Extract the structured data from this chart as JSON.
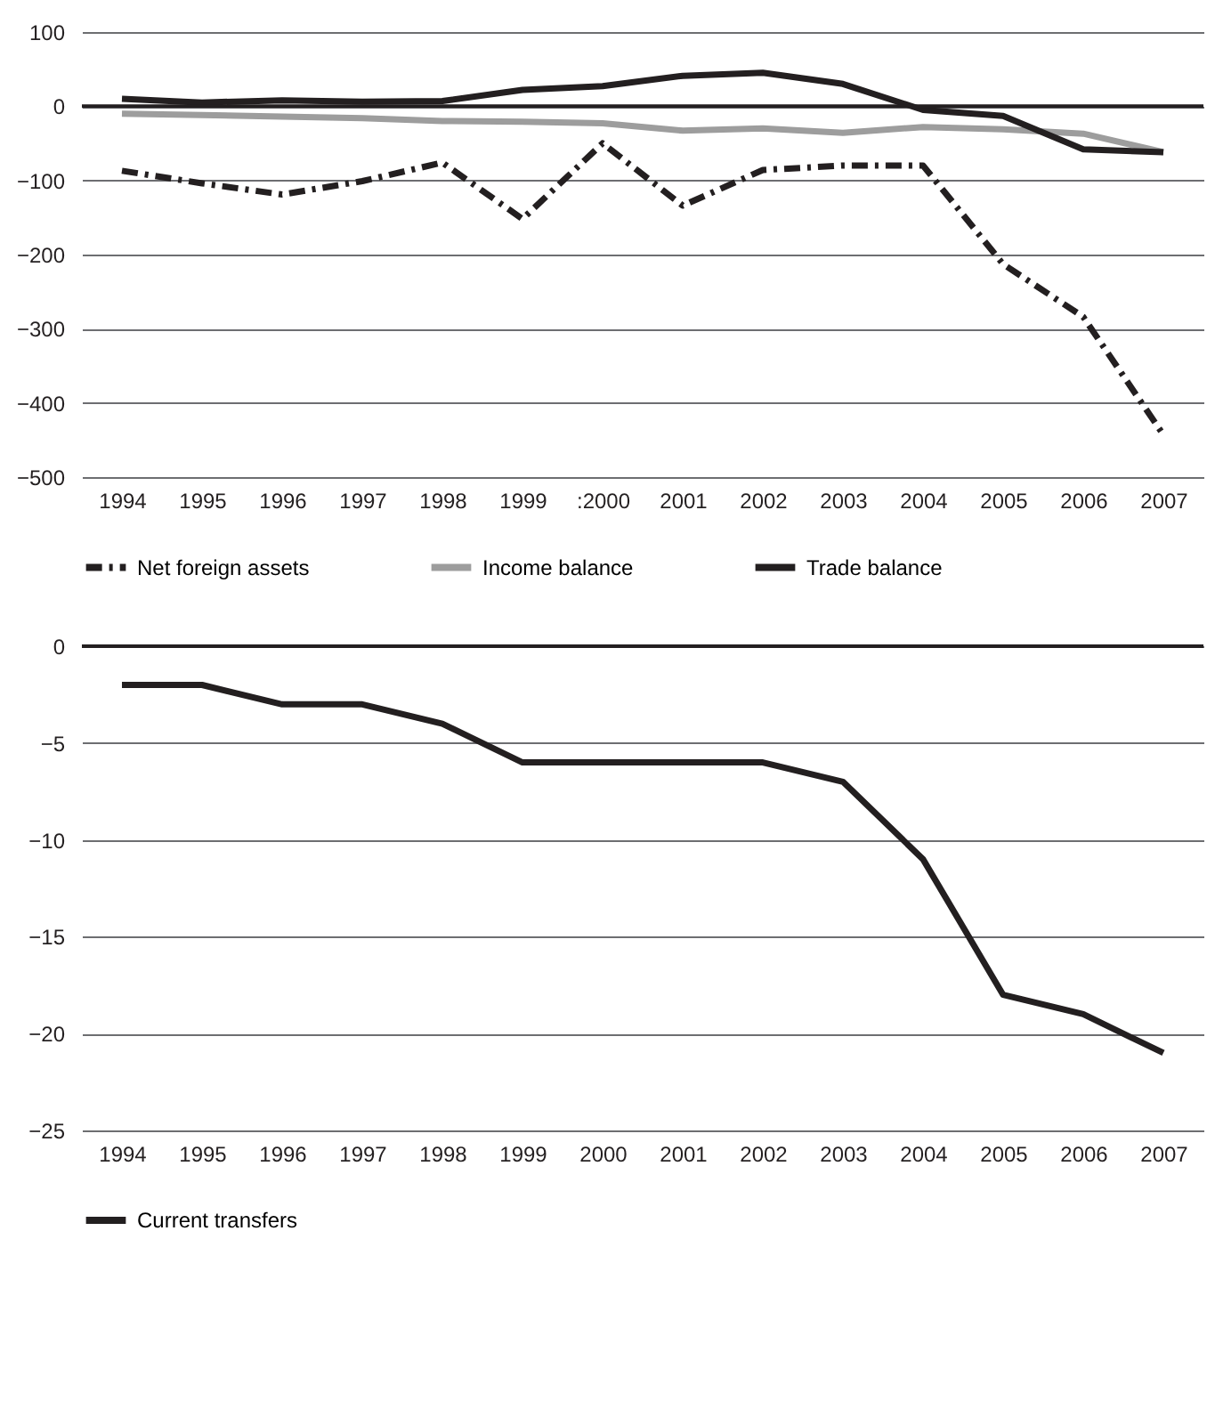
{
  "chart_data": [
    {
      "type": "line",
      "categories": [
        "1994",
        "1995",
        "1996",
        "1997",
        "1998",
        "1999",
        ":2000",
        "2001",
        "2002",
        "2003",
        "2004",
        "2005",
        "2006",
        "2007"
      ],
      "series": [
        {
          "name": "Net foreign assets",
          "color": "#231f20",
          "line_style": "dashed",
          "values": [
            -87,
            -104,
            -119,
            -101,
            -76,
            -152,
            -50,
            -134,
            -86,
            -80,
            -80,
            -213,
            -284,
            -443
          ]
        },
        {
          "name": "Income balance",
          "color": "#9d9d9d",
          "line_style": "solid",
          "values": [
            -10,
            -12,
            -14,
            -16,
            -20,
            -21,
            -23,
            -33,
            -30,
            -36,
            -28,
            -31,
            -37,
            -62
          ]
        },
        {
          "name": "Trade balance",
          "color": "#231f20",
          "line_style": "solid",
          "values": [
            10,
            5,
            8,
            6,
            7,
            22,
            27,
            41,
            45,
            30,
            -5,
            -13,
            -58,
            -62
          ]
        }
      ],
      "ylim": [
        -500,
        100
      ],
      "yticks": [
        -500,
        -400,
        -300,
        -200,
        -100,
        0,
        100
      ],
      "grid": "y",
      "legend": "bottom",
      "ref_lines": [
        {
          "axis": "y",
          "value": 0
        }
      ]
    },
    {
      "type": "line",
      "categories": [
        "1994",
        "1995",
        "1996",
        "1997",
        "1998",
        "1999",
        "2000",
        "2001",
        "2002",
        "2003",
        "2004",
        "2005",
        "2006",
        "2007"
      ],
      "series": [
        {
          "name": "Current transfers",
          "color": "#231f20",
          "line_style": "solid",
          "values": [
            -2,
            -2,
            -3,
            -3,
            -4,
            -6,
            -6,
            -6,
            -6,
            -7,
            -11,
            -18,
            -19,
            -21
          ]
        }
      ],
      "ylim": [
        -25,
        0
      ],
      "yticks": [
        -25,
        -20,
        -15,
        -10,
        -5,
        0
      ],
      "grid": "y",
      "legend": "bottom",
      "ref_lines": [
        {
          "axis": "y",
          "value": 0
        }
      ]
    }
  ]
}
